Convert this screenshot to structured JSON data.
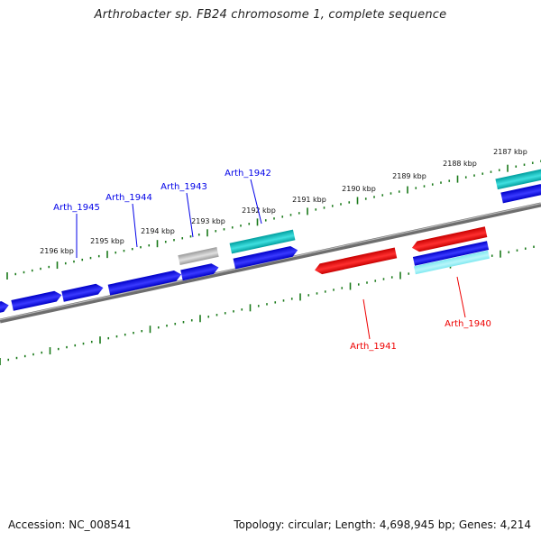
{
  "title": "Arthrobacter sp. FB24 chromosome 1, complete sequence",
  "footer": {
    "accession": "Accession: NC_008541",
    "stats": "Topology: circular; Length: 4,698,945 bp; Genes: 4,214"
  },
  "colors": {
    "forward_strand": "#0000e8",
    "reverse_strand": "#ee0000",
    "rna_feature": "#00b8b8",
    "pseudo_feature": "#b0b0b0",
    "backbone": "#7f7f7f",
    "ticks": "#1a7a1a"
  },
  "scale": {
    "unit": "kbp",
    "labels": [
      "2187 kbp",
      "2188 kbp",
      "2189 kbp",
      "2190 kbp",
      "2191 kbp",
      "2192 kbp",
      "2193 kbp",
      "2194 kbp",
      "2195 kbp",
      "2196 kbp"
    ]
  },
  "genes": [
    {
      "name": "Arth_1945",
      "strand": "forward"
    },
    {
      "name": "Arth_1944",
      "strand": "forward"
    },
    {
      "name": "Arth_1943",
      "strand": "forward"
    },
    {
      "name": "Arth_1942",
      "strand": "forward"
    },
    {
      "name": "Arth_1941",
      "strand": "reverse"
    },
    {
      "name": "Arth_1940",
      "strand": "reverse"
    }
  ]
}
